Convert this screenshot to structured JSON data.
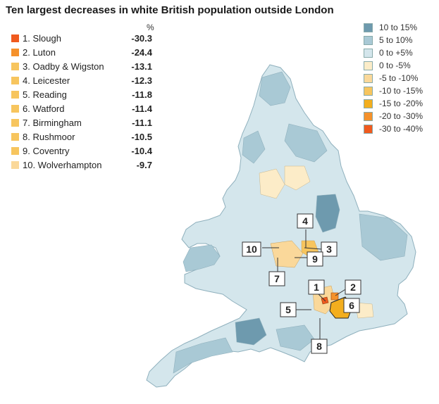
{
  "title": "Ten largest decreases in white British population outside London",
  "percent_header": "%",
  "ranking": [
    {
      "label": "1. Slough",
      "value": "-30.3",
      "color": "#f05a1e"
    },
    {
      "label": "2. Luton",
      "value": "-24.4",
      "color": "#f5912b"
    },
    {
      "label": "3. Oadby & Wigston",
      "value": "-13.1",
      "color": "#f7c55e"
    },
    {
      "label": "4. Leicester",
      "value": "-12.3",
      "color": "#f7c55e"
    },
    {
      "label": "5. Reading",
      "value": "-11.8",
      "color": "#f7c55e"
    },
    {
      "label": "6. Watford",
      "value": "-11.4",
      "color": "#f7c55e"
    },
    {
      "label": "7. Birmingham",
      "value": "-11.1",
      "color": "#f7c55e"
    },
    {
      "label": "8. Rushmoor",
      "value": "-10.5",
      "color": "#f7c55e"
    },
    {
      "label": "9. Coventry",
      "value": "-10.4",
      "color": "#f7c55e"
    },
    {
      "label": "10. Wolverhampton",
      "value": "-9.7",
      "color": "#fad89a"
    }
  ],
  "legend": [
    {
      "label": "10 to 15%",
      "color": "#6e9aae"
    },
    {
      "label": "5 to 10%",
      "color": "#a9c9d5"
    },
    {
      "label": "0 to +5%",
      "color": "#d4e6ec"
    },
    {
      "label": "0 to -5%",
      "color": "#fcecc8"
    },
    {
      "label": "-5 to -10%",
      "color": "#fad89a"
    },
    {
      "label": "-10 to -15%",
      "color": "#f7c55e"
    },
    {
      "label": "-15 to -20%",
      "color": "#f3ae1e"
    },
    {
      "label": "-20 to -30%",
      "color": "#f5912b"
    },
    {
      "label": "-30 to -40%",
      "color": "#f05a1e"
    }
  ],
  "callouts": [
    "1",
    "2",
    "3",
    "4",
    "5",
    "6",
    "7",
    "8",
    "9",
    "10"
  ],
  "colors": {
    "land_base": "#d4e6ec",
    "land_mid": "#a9c9d5",
    "land_dark": "#6e9aae",
    "border": "#8fb0bd"
  }
}
